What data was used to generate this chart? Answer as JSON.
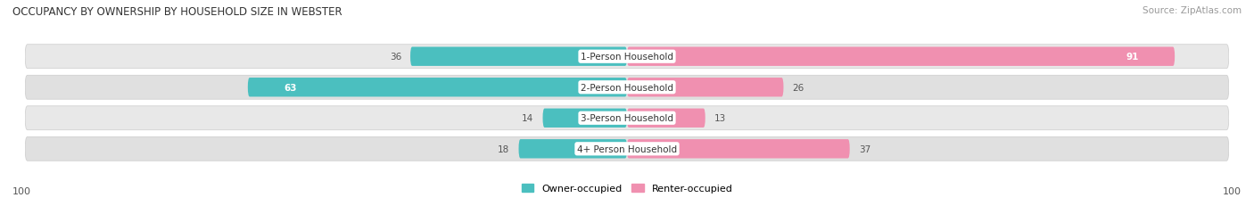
{
  "title": "OCCUPANCY BY OWNERSHIP BY HOUSEHOLD SIZE IN WEBSTER",
  "source": "Source: ZipAtlas.com",
  "categories": [
    "1-Person Household",
    "2-Person Household",
    "3-Person Household",
    "4+ Person Household"
  ],
  "owner_values": [
    36,
    63,
    14,
    18
  ],
  "renter_values": [
    91,
    26,
    13,
    37
  ],
  "owner_color": "#4bbfbf",
  "renter_color": "#f090b0",
  "row_bg_colors": [
    "#e8e8e8",
    "#e0e0e0",
    "#e8e8e8",
    "#e0e0e0"
  ],
  "axis_max": 100,
  "label_color_dark": "#555555",
  "label_color_white": "#ffffff",
  "figsize": [
    14.06,
    2.32
  ],
  "dpi": 100,
  "title_fontsize": 8.5,
  "source_fontsize": 7.5,
  "bar_label_fontsize": 7.5,
  "category_fontsize": 7.5,
  "legend_fontsize": 8,
  "axis_label_fontsize": 8
}
